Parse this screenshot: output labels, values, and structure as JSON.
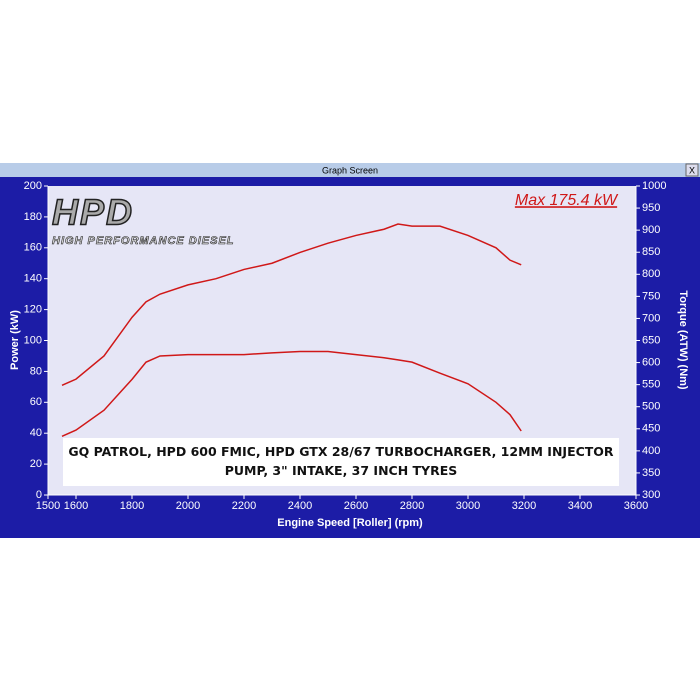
{
  "window": {
    "title": "Graph Screen",
    "close": "X"
  },
  "chart_data": {
    "type": "line",
    "x": [
      1550,
      1600,
      1700,
      1800,
      1850,
      1900,
      2000,
      2100,
      2200,
      2300,
      2400,
      2500,
      2600,
      2700,
      2750,
      2800,
      2900,
      3000,
      3100,
      3150,
      3190
    ],
    "series": [
      {
        "color": "#d01818",
        "values": [
          71,
          75,
          90,
          115,
          125,
          130,
          136,
          140,
          146,
          150,
          157,
          163,
          168,
          172,
          175.4,
          174,
          174,
          168,
          160,
          152,
          149
        ]
      },
      {
        "color": "#d01818",
        "axis": "y2",
        "values": [
          433,
          447,
          492,
          562,
          601,
          615,
          618,
          618,
          618,
          622,
          625,
          625,
          618,
          611,
          606,
          601,
          576,
          552,
          510,
          482,
          445
        ]
      }
    ],
    "xlim": [
      1500,
      3600
    ],
    "xticks": [
      1500,
      1600,
      1800,
      2000,
      2200,
      2400,
      2600,
      2800,
      3000,
      3200,
      3400,
      3600
    ],
    "ylim": [
      0,
      200
    ],
    "yticks": [
      0,
      20,
      40,
      60,
      80,
      100,
      120,
      140,
      160,
      180,
      200
    ],
    "y2lim": [
      300,
      1000
    ],
    "y2ticks": [
      300,
      350,
      400,
      450,
      500,
      550,
      600,
      650,
      700,
      750,
      800,
      850,
      900,
      950,
      1000
    ],
    "x_label": "Engine Speed [Roller] (rpm)",
    "y_label": "Power (kW)",
    "y2_label": "Torque (ATW) (Nm)",
    "annotation": "Max 175.4 kW",
    "caption": "GQ PATROL, HPD 600 FMIC, HPD GTX 28/67 TURBOCHARGER, 12MM INJECTOR PUMP, 3\" INTAKE, 37 INCH TYRES",
    "logo": {
      "title": "HPD",
      "subtitle": "HIGH PERFORMANCE DIESEL"
    }
  }
}
